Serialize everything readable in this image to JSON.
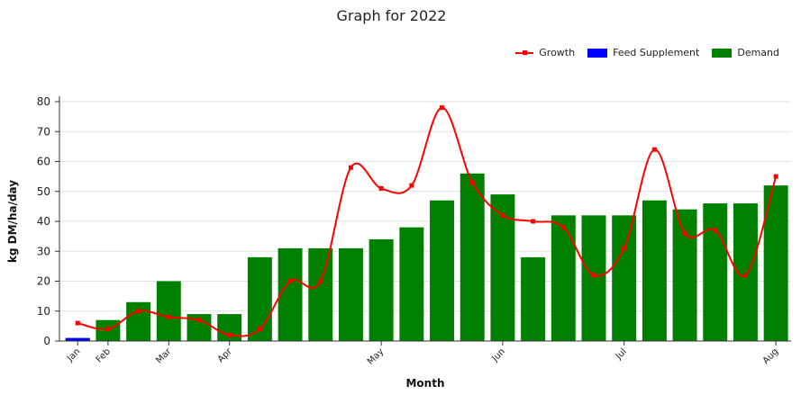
{
  "chart_data": {
    "type": "bar",
    "title": "Graph for 2022",
    "xlabel": "Month",
    "ylabel": "kg DM/ha/day",
    "ylim": [
      0,
      80
    ],
    "yticks": [
      0,
      10,
      20,
      30,
      40,
      50,
      60,
      70,
      80
    ],
    "grid": true,
    "legend_position": "top-right",
    "x_tick_labels": [
      "Jan",
      "Feb",
      "Mar",
      "Apr",
      "May",
      "Jun",
      "Jul",
      "Aug"
    ],
    "x_tick_positions": [
      0,
      1,
      3,
      5,
      10,
      14,
      18,
      23
    ],
    "series": [
      {
        "name": "Growth",
        "kind": "line",
        "color": "#ff0000",
        "values": [
          6,
          4,
          10,
          8,
          7,
          2,
          4,
          20,
          20,
          58,
          51,
          52,
          78,
          53,
          42,
          40,
          38,
          22,
          31,
          64,
          36,
          37,
          22,
          55
        ]
      },
      {
        "name": "Feed Supplement",
        "kind": "bar",
        "color": "#0000ff",
        "values": [
          1,
          0,
          0,
          0,
          0,
          0,
          0,
          0,
          0,
          0,
          0,
          0,
          0,
          0,
          0,
          0,
          0,
          0,
          0,
          0,
          0,
          0,
          0,
          0
        ]
      },
      {
        "name": "Demand",
        "kind": "bar",
        "color": "#008000",
        "values": [
          1,
          7,
          13,
          20,
          9,
          9,
          28,
          31,
          31,
          31,
          34,
          38,
          47,
          56,
          49,
          28,
          42,
          42,
          42,
          47,
          44,
          46,
          46,
          52
        ]
      }
    ]
  }
}
